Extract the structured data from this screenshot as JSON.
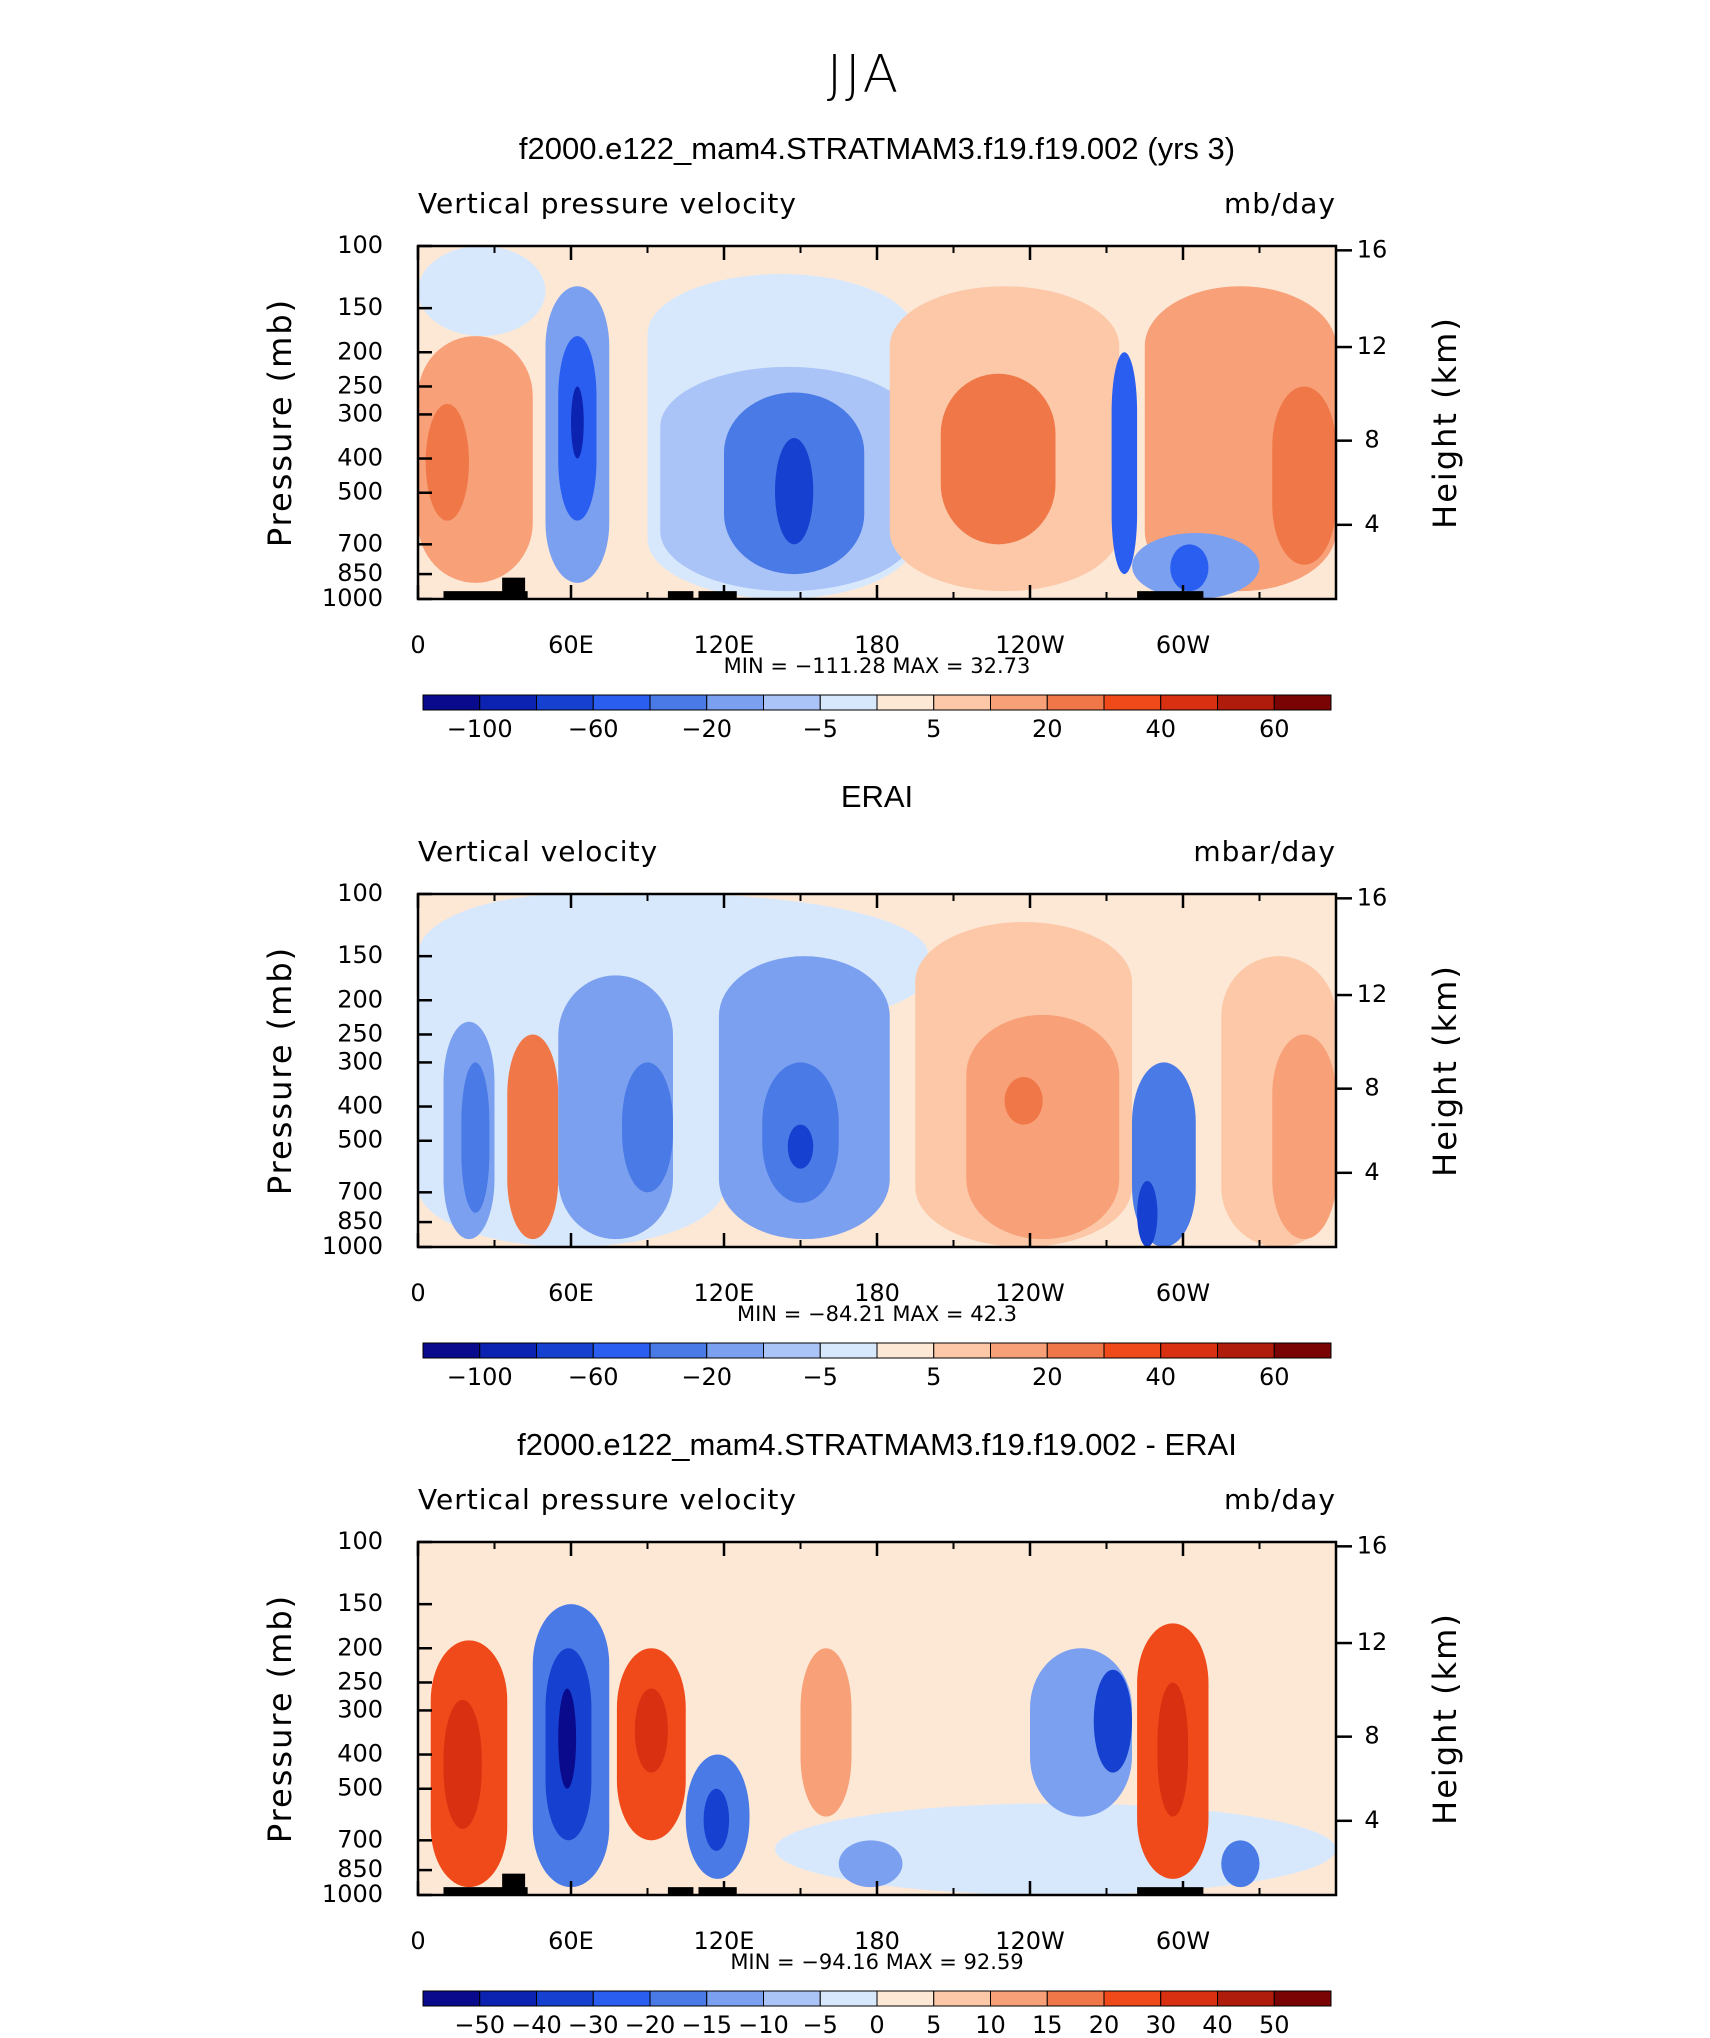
{
  "title": "JJA",
  "chart_data": [
    {
      "type": "contour",
      "title": "f2000.e122_mam4.STRATMAM3.f19.f19.002 (yrs 3)",
      "subtitle_left": "Vertical pressure velocity",
      "subtitle_right": "mb/day",
      "ylabel": "Pressure (mb)",
      "y2label": "Height (km)",
      "xlim": [
        0,
        360
      ],
      "xticks": [
        0,
        {
          "value": 60,
          "label": "60E"
        },
        {
          "value": 120,
          "label": "120E"
        },
        180,
        {
          "value": 240,
          "label": "120W"
        },
        {
          "value": 300,
          "label": "60W"
        }
      ],
      "xminor": [
        30,
        90,
        150,
        210,
        270,
        330
      ],
      "ylim": [
        1000,
        100
      ],
      "log_y": true,
      "yticks": [
        100,
        150,
        200,
        250,
        300,
        400,
        500,
        700,
        850,
        1000
      ],
      "y2ticks": [
        16,
        12,
        8,
        4
      ],
      "stats": {
        "min_label": "MIN =",
        "min": {
          "value": -111.28,
          "label": "−111.28"
        },
        "max_label": "MAX =",
        "max": 32.73
      },
      "colorbar": {
        "colors": [
          "#0a0a8c",
          "#0c22b0",
          "#1640d0",
          "#2a5ef0",
          "#4a7ae6",
          "#7ca0f0",
          "#aac4f8",
          "#d8e8fc",
          "#fde8d6",
          "#fcc8a8",
          "#f8a078",
          "#f07848",
          "#f04a1a",
          "#d83010",
          "#b01c0c",
          "#7a0404"
        ],
        "labels": [
          {
            "value": -100,
            "label": "−100"
          },
          {
            "value": -60,
            "label": "−60"
          },
          {
            "value": -20,
            "label": "−20"
          },
          {
            "value": -5,
            "label": "−5"
          },
          5,
          20,
          40,
          60
        ]
      }
    },
    {
      "type": "contour",
      "title": "ERAI",
      "subtitle_left": "Vertical velocity",
      "subtitle_right": "mbar/day",
      "ylabel": "Pressure (mb)",
      "y2label": "Height (km)",
      "xlim": [
        0,
        360
      ],
      "xticks": [
        0,
        {
          "value": 60,
          "label": "60E"
        },
        {
          "value": 120,
          "label": "120E"
        },
        180,
        {
          "value": 240,
          "label": "120W"
        },
        {
          "value": 300,
          "label": "60W"
        }
      ],
      "xminor": [
        30,
        90,
        150,
        210,
        270,
        330
      ],
      "ylim": [
        1000,
        100
      ],
      "log_y": true,
      "yticks": [
        100,
        150,
        200,
        250,
        300,
        400,
        500,
        700,
        850,
        1000
      ],
      "y2ticks": [
        16,
        12,
        8,
        4
      ],
      "stats": {
        "min_label": "MIN =",
        "min": {
          "value": -84.21,
          "label": "−84.21"
        },
        "max_label": "MAX =",
        "max": 42.3
      },
      "colorbar": {
        "colors": [
          "#0a0a8c",
          "#0c22b0",
          "#1640d0",
          "#2a5ef0",
          "#4a7ae6",
          "#7ca0f0",
          "#aac4f8",
          "#d8e8fc",
          "#fde8d6",
          "#fcc8a8",
          "#f8a078",
          "#f07848",
          "#f04a1a",
          "#d83010",
          "#b01c0c",
          "#7a0404"
        ],
        "labels": [
          {
            "value": -100,
            "label": "−100"
          },
          {
            "value": -60,
            "label": "−60"
          },
          {
            "value": -20,
            "label": "−20"
          },
          {
            "value": -5,
            "label": "−5"
          },
          5,
          20,
          40,
          60
        ]
      }
    },
    {
      "type": "contour",
      "title": "f2000.e122_mam4.STRATMAM3.f19.f19.002 - ERAI",
      "subtitle_left": "Vertical pressure velocity",
      "subtitle_right": "mb/day",
      "ylabel": "Pressure (mb)",
      "y2label": "Height (km)",
      "xlim": [
        0,
        360
      ],
      "xticks": [
        0,
        {
          "value": 60,
          "label": "60E"
        },
        {
          "value": 120,
          "label": "120E"
        },
        180,
        {
          "value": 240,
          "label": "120W"
        },
        {
          "value": 300,
          "label": "60W"
        }
      ],
      "xminor": [
        30,
        90,
        150,
        210,
        270,
        330
      ],
      "ylim": [
        1000,
        100
      ],
      "log_y": true,
      "yticks": [
        100,
        150,
        200,
        250,
        300,
        400,
        500,
        700,
        850,
        1000
      ],
      "y2ticks": [
        16,
        12,
        8,
        4
      ],
      "stats": {
        "min_label": "MIN =",
        "min": {
          "value": -94.16,
          "label": "−94.16"
        },
        "max_label": "MAX =",
        "max": 92.59
      },
      "colorbar": {
        "colors": [
          "#0a0a8c",
          "#0c22b0",
          "#1640d0",
          "#2a5ef0",
          "#4a7ae6",
          "#7ca0f0",
          "#aac4f8",
          "#d8e8fc",
          "#fde8d6",
          "#fcc8a8",
          "#f8a078",
          "#f07848",
          "#f04a1a",
          "#d83010",
          "#b01c0c",
          "#7a0404"
        ],
        "labels": [
          {
            "value": -50,
            "label": "−50"
          },
          {
            "value": -40,
            "label": "−40"
          },
          {
            "value": -30,
            "label": "−30"
          },
          {
            "value": -20,
            "label": "−20"
          },
          {
            "value": -15,
            "label": "−15"
          },
          {
            "value": -10,
            "label": "−10"
          },
          {
            "value": -5,
            "label": "−5"
          },
          0,
          5,
          10,
          15,
          20,
          30,
          40,
          50
        ]
      }
    }
  ]
}
